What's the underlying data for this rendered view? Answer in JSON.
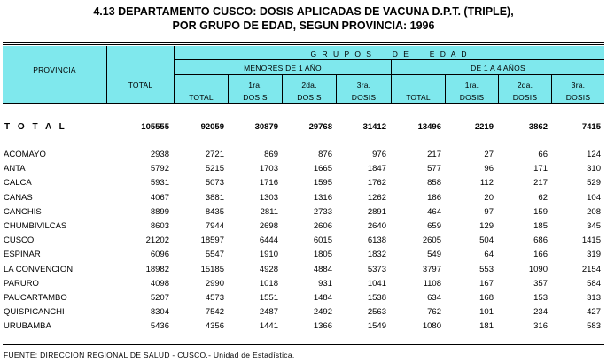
{
  "title_line1": "4.13  DEPARTAMENTO CUSCO: DOSIS APLICADAS DE VACUNA D.P.T. (TRIPLE),",
  "title_line2": "POR GRUPO DE EDAD, SEGUN PROVINCIA: 1996",
  "header": {
    "provincia": "PROVINCIA",
    "total": "TOTAL",
    "grupos": "G R U P O S     D E     E D A D",
    "menores": "MENORES DE 1 AÑO",
    "uno_a_cuatro": "DE 1 A 4 AÑOS",
    "sub_total": "TOTAL",
    "dosis1_a": "1ra.",
    "dosis1_b": "DOSIS",
    "dosis2_a": "2da.",
    "dosis2_b": "DOSIS",
    "dosis3_a": "3ra.",
    "dosis3_b": "DOSIS"
  },
  "total_row": {
    "label": "T O T A L",
    "values": [
      "105555",
      "92059",
      "30879",
      "29768",
      "31412",
      "13496",
      "2219",
      "3862",
      "7415"
    ]
  },
  "rows": [
    {
      "name": "ACOMAYO",
      "values": [
        "2938",
        "2721",
        "869",
        "876",
        "976",
        "217",
        "27",
        "66",
        "124"
      ]
    },
    {
      "name": "ANTA",
      "values": [
        "5792",
        "5215",
        "1703",
        "1665",
        "1847",
        "577",
        "96",
        "171",
        "310"
      ]
    },
    {
      "name": "CALCA",
      "values": [
        "5931",
        "5073",
        "1716",
        "1595",
        "1762",
        "858",
        "112",
        "217",
        "529"
      ]
    },
    {
      "name": "CANAS",
      "values": [
        "4067",
        "3881",
        "1303",
        "1316",
        "1262",
        "186",
        "20",
        "62",
        "104"
      ]
    },
    {
      "name": "CANCHIS",
      "values": [
        "8899",
        "8435",
        "2811",
        "2733",
        "2891",
        "464",
        "97",
        "159",
        "208"
      ]
    },
    {
      "name": "CHUMBIVILCAS",
      "values": [
        "8603",
        "7944",
        "2698",
        "2606",
        "2640",
        "659",
        "129",
        "185",
        "345"
      ]
    },
    {
      "name": "CUSCO",
      "values": [
        "21202",
        "18597",
        "6444",
        "6015",
        "6138",
        "2605",
        "504",
        "686",
        "1415"
      ]
    },
    {
      "name": "ESPINAR",
      "values": [
        "6096",
        "5547",
        "1910",
        "1805",
        "1832",
        "549",
        "64",
        "166",
        "319"
      ]
    },
    {
      "name": "LA CONVENCION",
      "values": [
        "18982",
        "15185",
        "4928",
        "4884",
        "5373",
        "3797",
        "553",
        "1090",
        "2154"
      ]
    },
    {
      "name": "PARURO",
      "values": [
        "4098",
        "2990",
        "1018",
        "931",
        "1041",
        "1108",
        "167",
        "357",
        "584"
      ]
    },
    {
      "name": "PAUCARTAMBO",
      "values": [
        "5207",
        "4573",
        "1551",
        "1484",
        "1538",
        "634",
        "168",
        "153",
        "313"
      ]
    },
    {
      "name": "QUISPICANCHI",
      "values": [
        "8304",
        "7542",
        "2487",
        "2492",
        "2563",
        "762",
        "101",
        "234",
        "427"
      ]
    },
    {
      "name": "URUBAMBA",
      "values": [
        "5436",
        "4356",
        "1441",
        "1366",
        "1549",
        "1080",
        "181",
        "316",
        "583"
      ]
    }
  ],
  "source": "FUENTE: DIRECCION REGIONAL DE SALUD - CUSCO.- Unidad de Estadística."
}
